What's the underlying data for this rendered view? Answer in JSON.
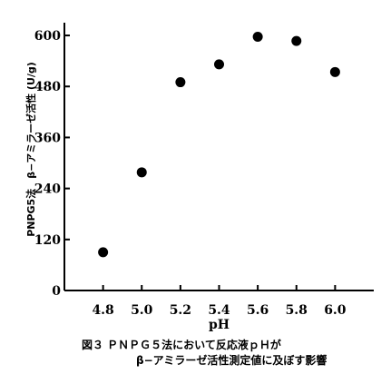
{
  "chart_data": {
    "type": "scatter",
    "title": "",
    "xlabel": "pH",
    "ylabel": "PNPG5法　β−アミラーゼ活性 (U/g)",
    "xlim": [
      4.6,
      6.2
    ],
    "ylim": [
      0,
      630
    ],
    "xticks": [
      "4.8",
      "5.0",
      "5.2",
      "5.4",
      "5.6",
      "5.8",
      "6.0"
    ],
    "yticks": [
      "0",
      "120",
      "240",
      "360",
      "480",
      "600"
    ],
    "points": [
      {
        "x": 4.8,
        "y": 90
      },
      {
        "x": 5.0,
        "y": 278
      },
      {
        "x": 5.2,
        "y": 490
      },
      {
        "x": 5.4,
        "y": 532
      },
      {
        "x": 5.6,
        "y": 597
      },
      {
        "x": 5.8,
        "y": 587
      },
      {
        "x": 6.0,
        "y": 514
      }
    ],
    "grid": false,
    "legend": "none"
  },
  "caption": {
    "line1": "図３ ＰＮＰＧ５法において反応液ｐＨが",
    "line2": "β−アミラーゼ活性測定値に及ぼす影響"
  },
  "colors": {
    "marker": "#000000",
    "axis": "#000000"
  }
}
